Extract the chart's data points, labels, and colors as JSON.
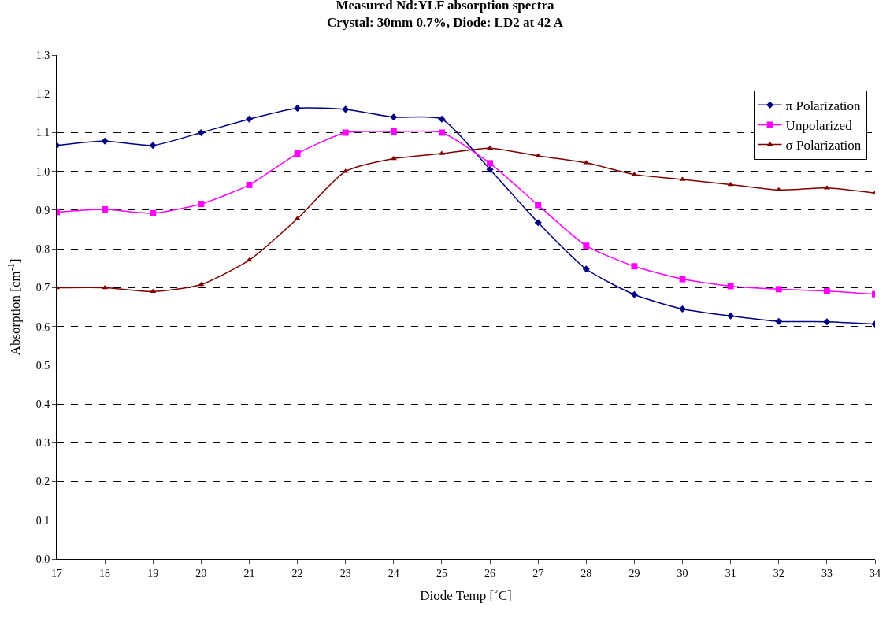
{
  "chart_data": {
    "type": "line",
    "title": "Measured Nd:YLF absorption spectra",
    "subtitle": "Crystal: 30mm 0.7%, Diode: LD2 at 42 A",
    "xlabel": "Diode Temp [˚C]",
    "ylabel": "Absorption [cm$^{-1}$]",
    "x": [
      17,
      18,
      19,
      20,
      21,
      22,
      23,
      24,
      25,
      26,
      27,
      28,
      29,
      30,
      31,
      32,
      33,
      34
    ],
    "series": [
      {
        "name": "π Polarization",
        "color": "#000080",
        "marker": "diamond",
        "values": [
          1.067,
          1.078,
          1.067,
          1.1,
          1.135,
          1.163,
          1.16,
          1.14,
          1.135,
          1.005,
          0.868,
          0.748,
          0.682,
          0.645,
          0.627,
          0.613,
          0.612,
          0.606
        ]
      },
      {
        "name": "Unpolarized",
        "color": "#ff00ff",
        "marker": "square",
        "values": [
          0.895,
          0.902,
          0.892,
          0.916,
          0.965,
          1.046,
          1.1,
          1.103,
          1.1,
          1.021,
          0.913,
          0.808,
          0.755,
          0.722,
          0.704,
          0.696,
          0.691,
          0.683
        ]
      },
      {
        "name": "σ Polarization",
        "color": "#800000",
        "marker": "triangle",
        "values": [
          0.7,
          0.7,
          0.69,
          0.708,
          0.771,
          0.878,
          1.0,
          1.033,
          1.046,
          1.06,
          1.04,
          1.022,
          0.992,
          0.979,
          0.966,
          0.952,
          0.957,
          0.944
        ]
      }
    ],
    "xlim": [
      17,
      34
    ],
    "xticks": [
      17,
      18,
      19,
      20,
      21,
      22,
      23,
      24,
      25,
      26,
      27,
      28,
      29,
      30,
      31,
      32,
      33,
      34
    ],
    "ylim": [
      0,
      1.3
    ],
    "yticks": [
      {
        "value": 0,
        "label": "0.0"
      },
      {
        "value": 0.1,
        "label": "0.1"
      },
      {
        "value": 0.2,
        "label": "0.2"
      },
      {
        "value": 0.3,
        "label": "0.3"
      },
      {
        "value": 0.4,
        "label": "0.4"
      },
      {
        "value": 0.5,
        "label": "0.5"
      },
      {
        "value": 0.6,
        "label": "0.6"
      },
      {
        "value": 0.7,
        "label": "0.7"
      },
      {
        "value": 0.8,
        "label": "0.8"
      },
      {
        "value": 0.9,
        "label": "0.9"
      },
      {
        "value": 1.0,
        "label": "1.0"
      },
      {
        "value": 1.1,
        "label": "1.1"
      },
      {
        "value": 1.2,
        "label": "1.2"
      },
      {
        "value": 1.3,
        "label": "1.3"
      }
    ],
    "grid": "y",
    "legend": "top right",
    "line_style": "solid"
  }
}
